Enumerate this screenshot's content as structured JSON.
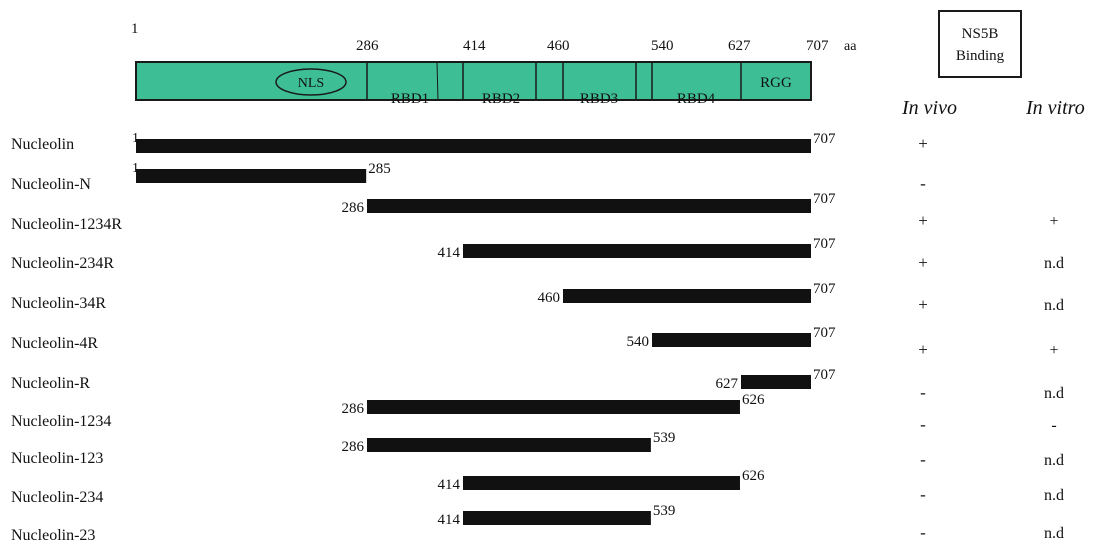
{
  "domain_map": {
    "start": "1",
    "unit": "aa",
    "positions": [
      "286",
      "414",
      "460",
      "540",
      "627",
      "707"
    ],
    "segments": [
      {
        "key": "n-term",
        "label": "NLS"
      },
      {
        "key": "rbd1",
        "label": "RBD1"
      },
      {
        "key": "rbd2",
        "label": "RBD2"
      },
      {
        "key": "linker-a",
        "label": ""
      },
      {
        "key": "rbd3",
        "label": "RBD3"
      },
      {
        "key": "linker-b",
        "label": ""
      },
      {
        "key": "rbd4",
        "label": "RBD4"
      },
      {
        "key": "rgg",
        "label": "RGG"
      }
    ],
    "fill_color": "#3dbe95",
    "outline_color": "#1a1a1a"
  },
  "binding": {
    "header_line1": "NS5B",
    "header_line2": "Binding",
    "col_in_vivo": "In vivo",
    "col_in_vitro": "In vitro"
  },
  "constructs": [
    {
      "name": "Nucleolin",
      "start": 1,
      "end": 707,
      "start_label": "1",
      "end_label": "707",
      "in_vivo": "+",
      "in_vitro": ""
    },
    {
      "name": "Nucleolin-N",
      "start": 1,
      "end": 285,
      "start_label": "1",
      "end_label": "285",
      "in_vivo": "-",
      "in_vitro": ""
    },
    {
      "name": "Nucleolin-1234R",
      "start": 286,
      "end": 707,
      "start_label": "286",
      "end_label": "707",
      "in_vivo": "+",
      "in_vitro": "+"
    },
    {
      "name": "Nucleolin-234R",
      "start": 414,
      "end": 707,
      "start_label": "414",
      "end_label": "707",
      "in_vivo": "+",
      "in_vitro": "n.d"
    },
    {
      "name": "Nucleolin-34R",
      "start": 460,
      "end": 707,
      "start_label": "460",
      "end_label": "707",
      "in_vivo": "+",
      "in_vitro": "n.d"
    },
    {
      "name": "Nucleolin-4R",
      "start": 540,
      "end": 707,
      "start_label": "540",
      "end_label": "707",
      "in_vivo": "+",
      "in_vitro": "+"
    },
    {
      "name": "Nucleolin-R",
      "start": 627,
      "end": 707,
      "start_label": "627",
      "end_label": "707",
      "in_vivo": "-",
      "in_vitro": "n.d"
    },
    {
      "name": "Nucleolin-1234",
      "start": 286,
      "end": 626,
      "start_label": "286",
      "end_label": "626",
      "in_vivo": "-",
      "in_vitro": "-"
    },
    {
      "name": "Nucleolin-123",
      "start": 286,
      "end": 539,
      "start_label": "286",
      "end_label": "539",
      "in_vivo": "-",
      "in_vitro": "n.d"
    },
    {
      "name": "Nucleolin-234",
      "start": 414,
      "end": 626,
      "start_label": "414",
      "end_label": "626",
      "in_vivo": "-",
      "in_vitro": "n.d"
    },
    {
      "name": "Nucleolin-23",
      "start": 414,
      "end": 539,
      "start_label": "414",
      "end_label": "539",
      "in_vivo": "-",
      "in_vitro": "n.d"
    }
  ]
}
